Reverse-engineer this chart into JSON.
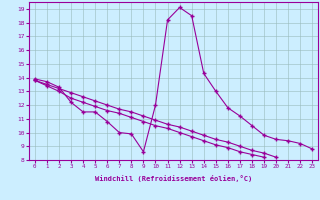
{
  "xlabel": "Windchill (Refroidissement éolien,°C)",
  "bg_color": "#cceeff",
  "line_color": "#990099",
  "grid_color": "#99bbbb",
  "xlim": [
    -0.5,
    23.5
  ],
  "ylim": [
    8,
    19.5
  ],
  "xticks": [
    0,
    1,
    2,
    3,
    4,
    5,
    6,
    7,
    8,
    9,
    10,
    11,
    12,
    13,
    14,
    15,
    16,
    17,
    18,
    19,
    20,
    21,
    22,
    23
  ],
  "yticks": [
    8,
    9,
    10,
    11,
    12,
    13,
    14,
    15,
    16,
    17,
    18,
    19
  ],
  "line1_x": [
    0,
    1,
    2,
    3,
    4,
    5,
    6,
    7,
    8,
    9,
    10,
    11,
    12,
    13,
    14,
    15,
    16,
    17,
    18,
    19,
    20,
    21,
    22,
    23
  ],
  "line1_y": [
    13.9,
    13.7,
    13.3,
    12.2,
    11.5,
    11.5,
    10.8,
    10.0,
    9.9,
    8.6,
    12.0,
    18.2,
    19.1,
    18.5,
    14.3,
    13.0,
    11.8,
    11.2,
    10.5,
    9.8,
    9.5,
    9.4,
    9.2,
    8.8
  ],
  "line2_x": [
    0,
    1,
    2,
    3,
    4,
    5,
    6,
    7,
    8,
    9,
    10,
    11,
    12,
    13,
    14,
    15,
    16,
    17,
    18,
    19,
    20,
    21,
    22,
    23
  ],
  "line2_y": [
    13.8,
    13.4,
    13.0,
    12.5,
    12.2,
    11.9,
    11.6,
    11.4,
    11.1,
    10.8,
    10.5,
    10.3,
    10.0,
    9.7,
    9.4,
    9.1,
    8.9,
    8.6,
    8.4,
    8.2,
    null,
    null,
    null,
    null
  ],
  "line3_x": [
    0,
    1,
    2,
    3,
    4,
    5,
    6,
    7,
    8,
    9,
    10,
    11,
    12,
    13,
    14,
    15,
    16,
    17,
    18,
    19,
    20,
    21,
    22,
    23
  ],
  "line3_y": [
    13.8,
    13.5,
    13.2,
    12.9,
    12.6,
    12.3,
    12.0,
    11.7,
    11.5,
    11.2,
    10.9,
    10.6,
    10.4,
    10.1,
    9.8,
    9.5,
    9.3,
    9.0,
    8.7,
    8.5,
    8.2,
    null,
    null,
    null
  ]
}
